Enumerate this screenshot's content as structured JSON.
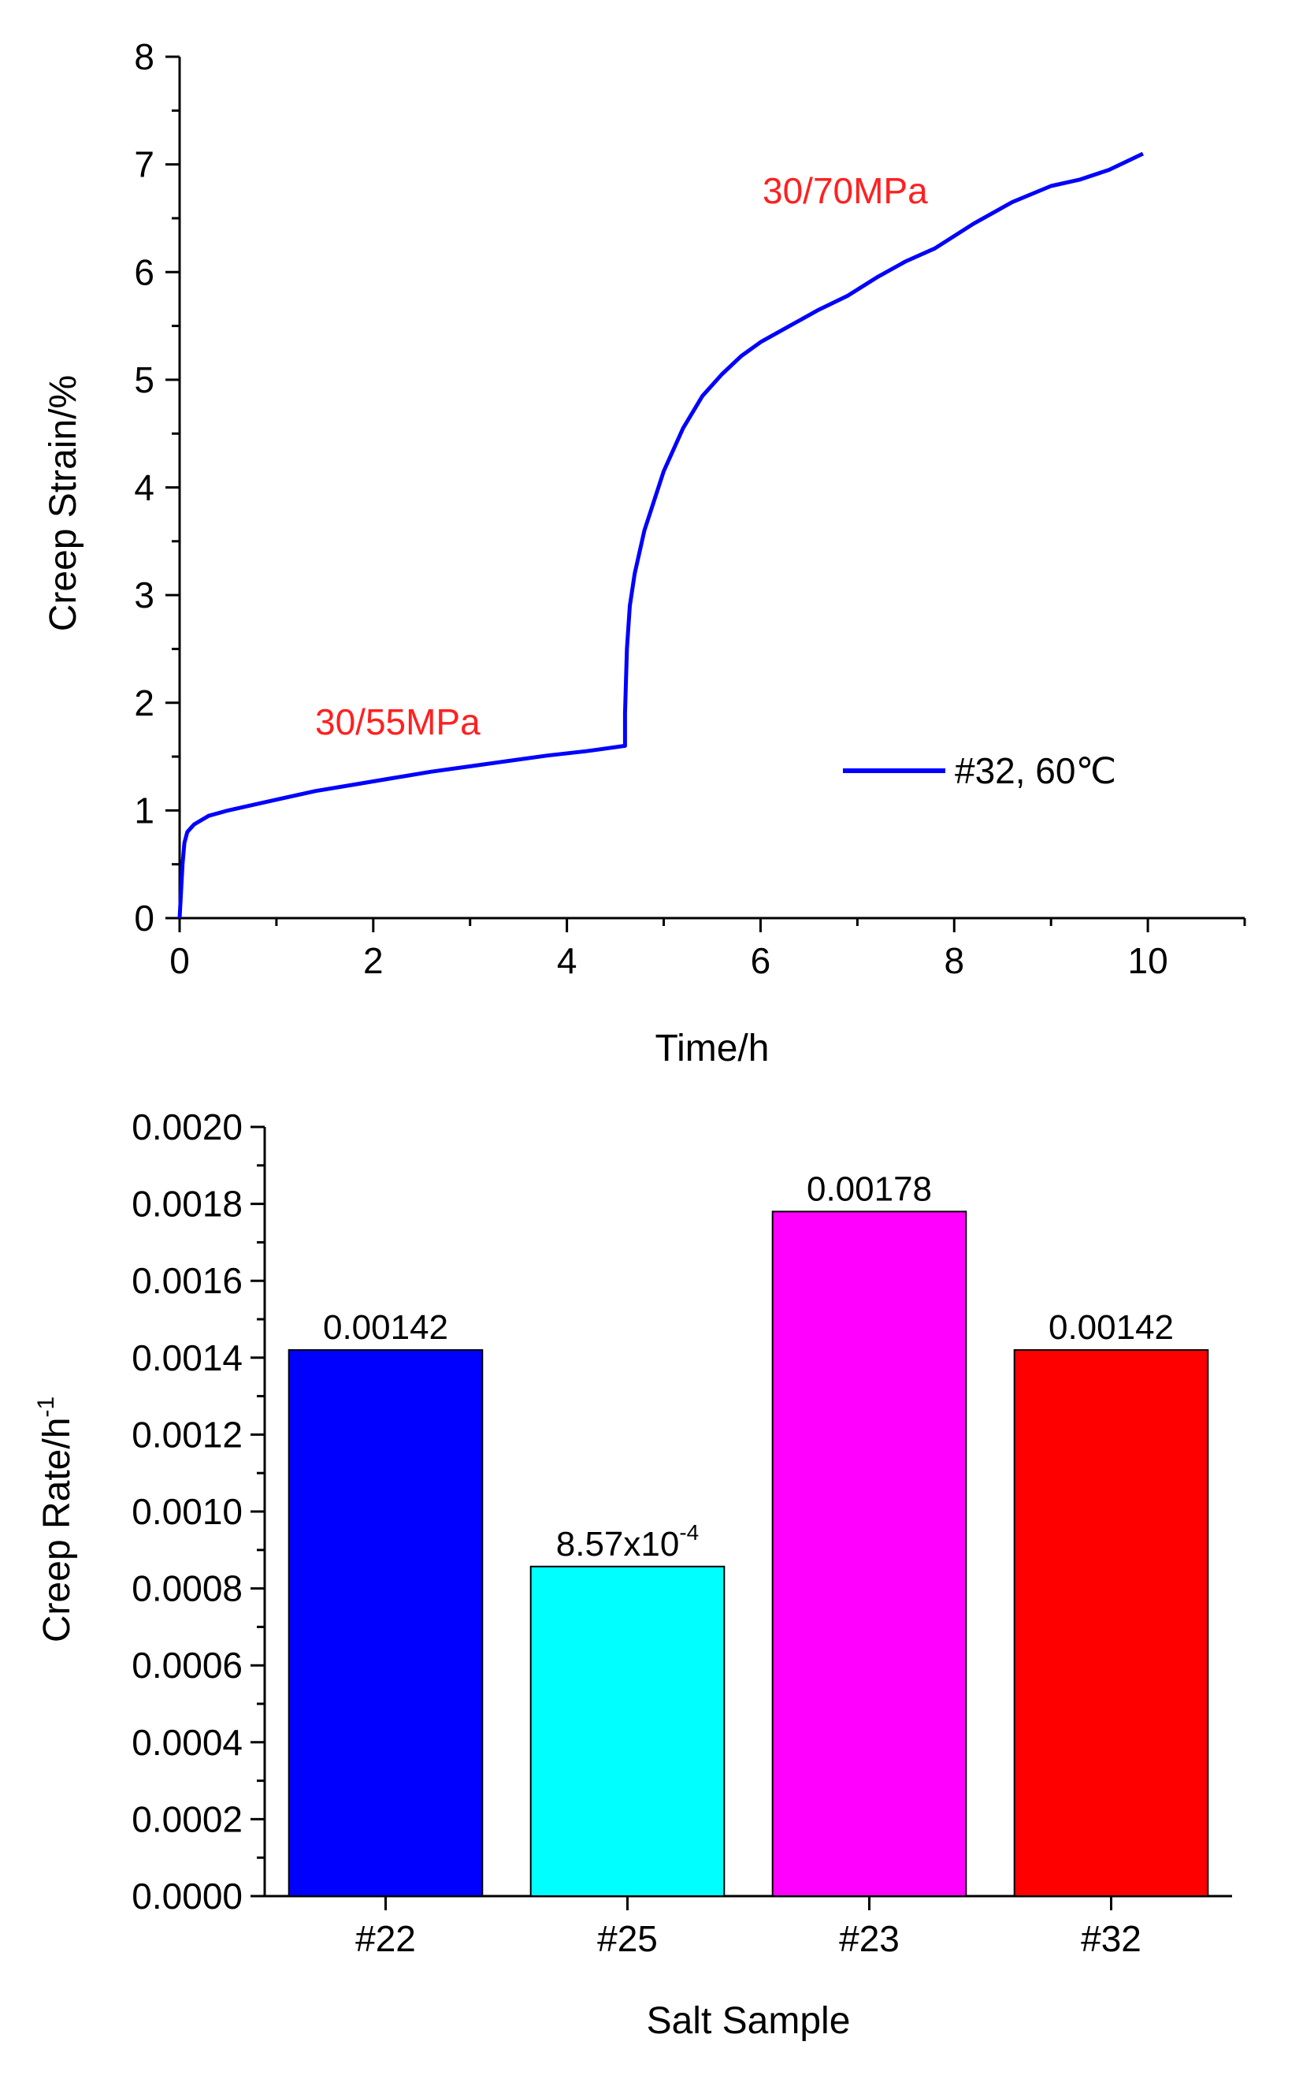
{
  "chart_data": [
    {
      "type": "line",
      "title": "",
      "xlabel": "Time/h",
      "ylabel": "Creep Strain/%",
      "xlim": [
        0,
        11
      ],
      "ylim": [
        0,
        8
      ],
      "xticks": [
        "0",
        "2",
        "4",
        "6",
        "8",
        "10"
      ],
      "yticks": [
        "0",
        "1",
        "2",
        "3",
        "4",
        "5",
        "6",
        "7",
        "8"
      ],
      "legend": {
        "position": "right-middle",
        "entries": [
          "#32, 60℃"
        ]
      },
      "series": [
        {
          "name": "#32, 60℃",
          "color": "#0000ff",
          "x": [
            0,
            0.03,
            0.05,
            0.08,
            0.15,
            0.3,
            0.5,
            0.7,
            1.0,
            1.4,
            1.8,
            2.2,
            2.6,
            3.0,
            3.4,
            3.8,
            4.2,
            4.6,
            4.6,
            4.62,
            4.65,
            4.7,
            4.8,
            5.0,
            5.2,
            5.4,
            5.6,
            5.8,
            6.0,
            6.3,
            6.6,
            6.9,
            7.2,
            7.5,
            7.8,
            8.2,
            8.6,
            9.0,
            9.3,
            9.6,
            9.95
          ],
          "y": [
            0,
            0.5,
            0.7,
            0.8,
            0.87,
            0.95,
            1.0,
            1.04,
            1.1,
            1.18,
            1.24,
            1.3,
            1.36,
            1.41,
            1.46,
            1.51,
            1.55,
            1.6,
            1.9,
            2.5,
            2.9,
            3.2,
            3.6,
            4.15,
            4.55,
            4.85,
            5.05,
            5.22,
            5.35,
            5.5,
            5.65,
            5.78,
            5.95,
            6.1,
            6.22,
            6.45,
            6.65,
            6.8,
            6.86,
            6.95,
            7.1
          ]
        }
      ],
      "annotations": [
        {
          "text": "30/55MPa",
          "color": "#ff2020"
        },
        {
          "text": "30/70MPa",
          "color": "#ff2020"
        }
      ]
    },
    {
      "type": "bar",
      "title": "",
      "xlabel": "Salt Sample",
      "ylabel_main": "Creep Rate/h",
      "ylabel_sup": "-1",
      "ylim": [
        0,
        0.002
      ],
      "yticks": [
        "0.0000",
        "0.0002",
        "0.0004",
        "0.0006",
        "0.0008",
        "0.0010",
        "0.0012",
        "0.0014",
        "0.0016",
        "0.0018",
        "0.0020"
      ],
      "categories": [
        "#22",
        "#25",
        "#23",
        "#32"
      ],
      "values": [
        0.00142,
        0.000857,
        0.00178,
        0.00142
      ],
      "colors": [
        "#0000ff",
        "#00ffff",
        "#ff00ff",
        "#ff0000"
      ],
      "data_labels": [
        {
          "main": "0.00142"
        },
        {
          "main": "8.57x10",
          "sup": "-4"
        },
        {
          "main": "0.00178"
        },
        {
          "main": "0.00142"
        }
      ]
    }
  ]
}
